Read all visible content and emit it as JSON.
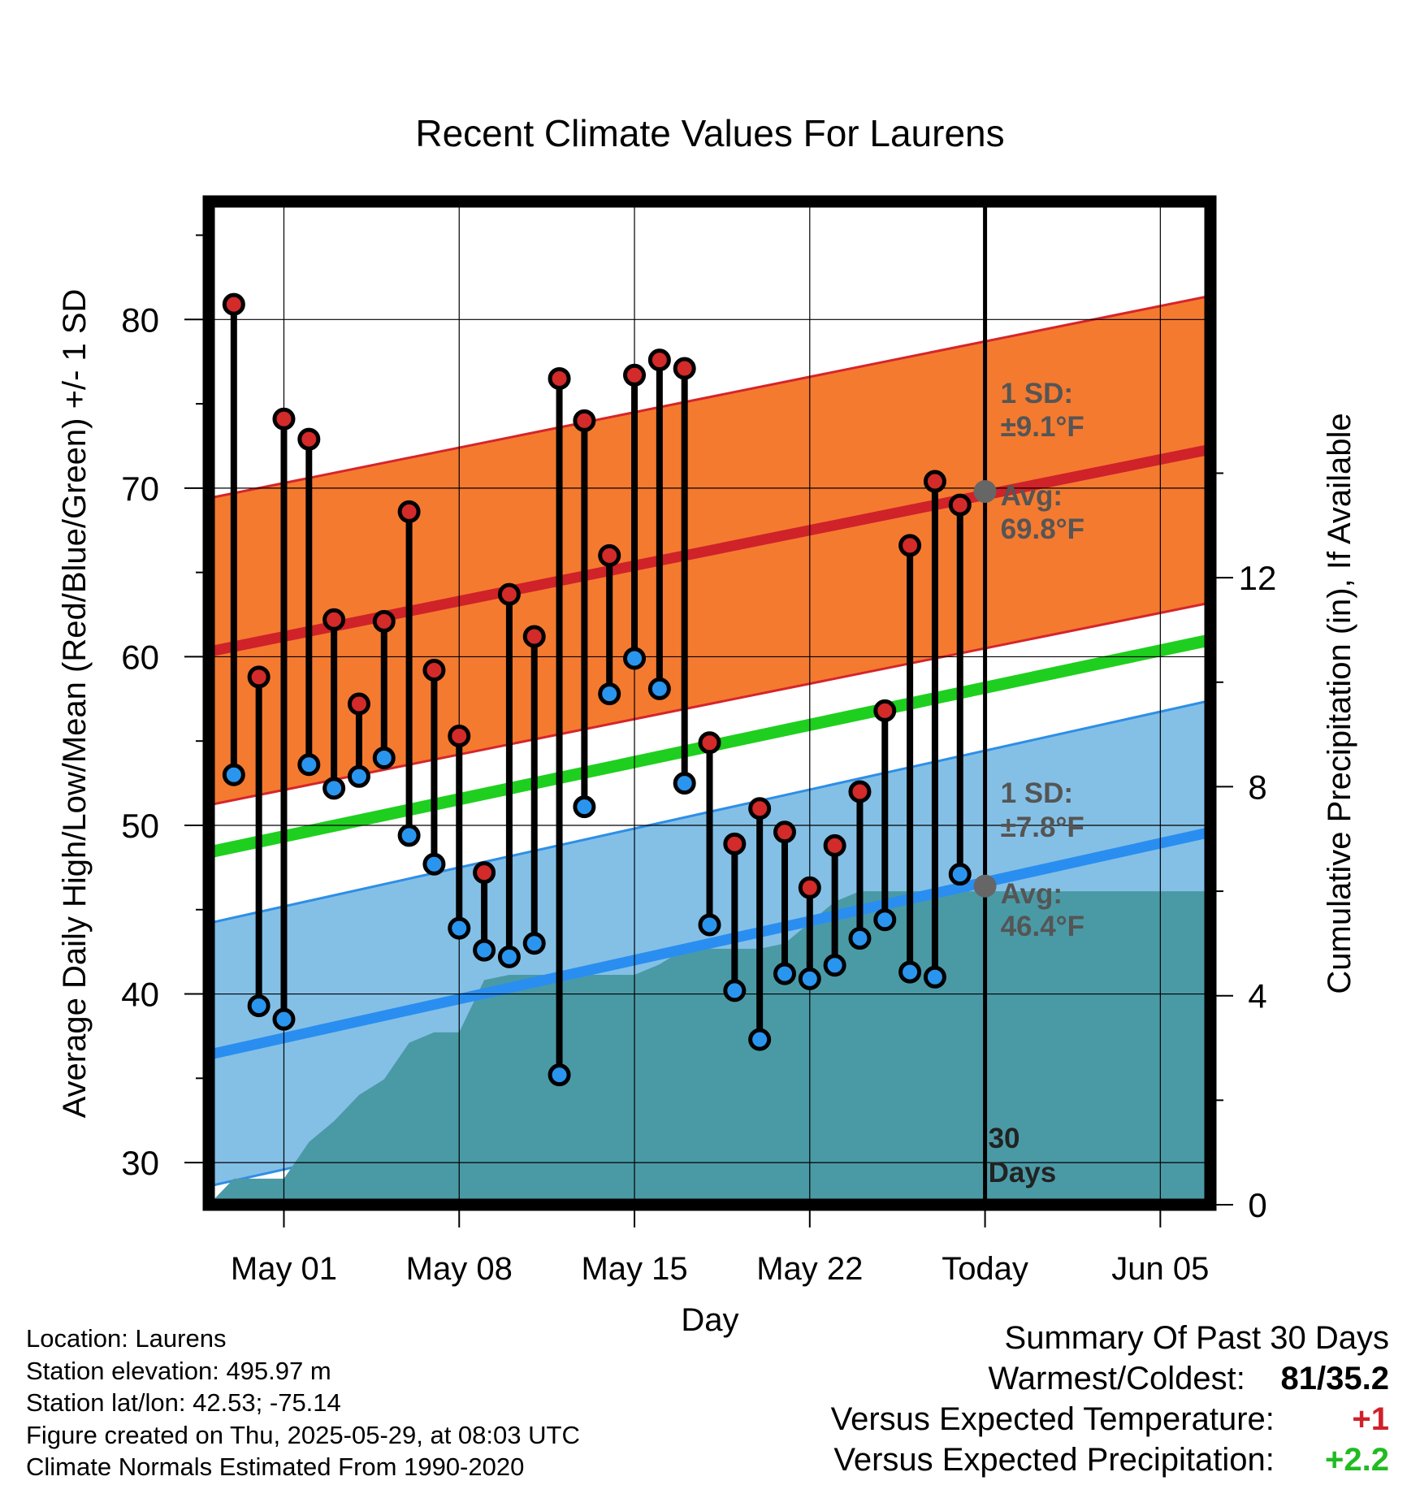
{
  "chart_data": {
    "type": "line",
    "title": "Recent Climate Values For Laurens",
    "xlabel": "Day",
    "ylabel": "Average Daily High/Low/Mean (Red/Blue/Green) +/- 1 SD",
    "y2label": "Cumulative Precipitation (in), If Available",
    "x_ticks": [
      "May 01",
      "May 08",
      "May 15",
      "May 22",
      "Today",
      "Jun 05"
    ],
    "x_range": [
      "2025-04-28",
      "2025-06-07"
    ],
    "ylim": [
      27.5,
      87
    ],
    "y_ticks": [
      30,
      40,
      50,
      60,
      70,
      80
    ],
    "y2lim": [
      0,
      19.2
    ],
    "y2_ticks": [
      0,
      4,
      8,
      12
    ],
    "grid": true,
    "today": "2025-05-29",
    "today_label": "30 Days",
    "normals": {
      "high_avg": [
        60.3,
        72.3
      ],
      "high_sd": 9.1,
      "low_avg": [
        36.4,
        49.6
      ],
      "low_sd": 7.8,
      "mean_avg": [
        48.4,
        61.0
      ]
    },
    "annotations": {
      "high_sd_label": "1 SD:",
      "high_sd_value": "±9.1°F",
      "high_avg_label": "Avg:",
      "high_avg_value": "69.8°F",
      "low_sd_label": "1 SD:",
      "low_sd_value": "±7.8°F",
      "low_avg_label": "Avg:",
      "low_avg_value": "46.4°F"
    },
    "daily": {
      "dates": [
        "2025-04-29",
        "2025-04-30",
        "2025-05-01",
        "2025-05-02",
        "2025-05-03",
        "2025-05-04",
        "2025-05-05",
        "2025-05-06",
        "2025-05-07",
        "2025-05-08",
        "2025-05-09",
        "2025-05-10",
        "2025-05-11",
        "2025-05-12",
        "2025-05-13",
        "2025-05-14",
        "2025-05-15",
        "2025-05-16",
        "2025-05-17",
        "2025-05-18",
        "2025-05-19",
        "2025-05-20",
        "2025-05-21",
        "2025-05-22",
        "2025-05-23",
        "2025-05-24",
        "2025-05-25",
        "2025-05-26",
        "2025-05-27",
        "2025-05-28"
      ],
      "high": [
        80.9,
        58.8,
        74.1,
        72.9,
        62.2,
        57.2,
        62.1,
        68.6,
        59.2,
        55.3,
        47.2,
        63.7,
        61.2,
        76.5,
        74.0,
        66.0,
        76.7,
        77.6,
        77.1,
        54.9,
        48.9,
        51.0,
        49.6,
        46.3,
        48.8,
        52.0,
        56.8,
        66.6,
        70.4,
        69.0
      ],
      "low": [
        53.0,
        39.3,
        38.5,
        53.6,
        52.2,
        52.9,
        54.0,
        49.4,
        47.7,
        43.9,
        42.6,
        42.2,
        43.0,
        35.2,
        51.1,
        57.8,
        59.9,
        58.1,
        52.5,
        44.1,
        40.2,
        37.3,
        41.2,
        40.9,
        41.7,
        43.3,
        44.4,
        41.3,
        41.0,
        47.1
      ]
    },
    "precip": {
      "dates": [
        "2025-04-28",
        "2025-04-29",
        "2025-04-30",
        "2025-05-01",
        "2025-05-02",
        "2025-05-03",
        "2025-05-04",
        "2025-05-05",
        "2025-05-06",
        "2025-05-07",
        "2025-05-08",
        "2025-05-09",
        "2025-05-10",
        "2025-05-11",
        "2025-05-12",
        "2025-05-13",
        "2025-05-14",
        "2025-05-15",
        "2025-05-16",
        "2025-05-17",
        "2025-05-18",
        "2025-05-19",
        "2025-05-20",
        "2025-05-21",
        "2025-05-22",
        "2025-05-23",
        "2025-05-24",
        "2025-05-25",
        "2025-06-07"
      ],
      "values": [
        0.0,
        0.5,
        0.5,
        0.5,
        1.2,
        1.6,
        2.1,
        2.4,
        3.1,
        3.3,
        3.3,
        4.3,
        4.4,
        4.4,
        4.4,
        4.4,
        4.4,
        4.4,
        4.6,
        4.9,
        4.9,
        4.9,
        4.9,
        5.0,
        5.4,
        5.8,
        6.0,
        6.0,
        6.0
      ]
    }
  },
  "footer": {
    "location": "Location: Laurens",
    "elevation": "Station elevation: 495.97 m",
    "latlon": "Station lat/lon: 42.53; -75.14",
    "created": "Figure created on Thu, 2025-05-29, at 08:03 UTC",
    "normals": "Climate Normals Estimated From 1990-2020"
  },
  "summary": {
    "title": "Summary Of Past 30 Days",
    "warm_cold_label": "Warmest/Coldest:",
    "warm_cold_value": "81/35.2",
    "temp_label": "Versus Expected Temperature:",
    "temp_value": "+1",
    "precip_label": "Versus Expected Precipitation:",
    "precip_value": "+2.2",
    "temp_color": "#d0202a",
    "precip_color": "#22bb22"
  }
}
